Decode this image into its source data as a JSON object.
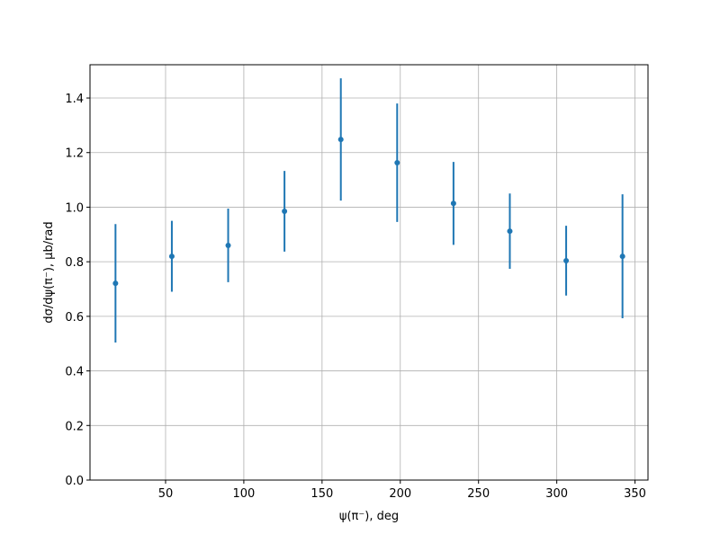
{
  "chart_data": {
    "type": "errorbar",
    "x_label": "ψ(π⁻), deg",
    "y_label": "dσ/dψ(π⁻), μb/rad",
    "x": [
      18,
      54,
      90,
      126,
      162,
      198,
      234,
      270,
      306,
      342
    ],
    "values": [
      0.721,
      0.82,
      0.86,
      0.985,
      1.248,
      1.163,
      1.014,
      0.912,
      0.804,
      0.82
    ],
    "errors": [
      0.217,
      0.13,
      0.135,
      0.148,
      0.224,
      0.217,
      0.152,
      0.138,
      0.128,
      0.227
    ],
    "color": "#1f77b4",
    "xlim": [
      1.7,
      358.3
    ],
    "ylim": [
      0,
      1.522
    ],
    "xticks": [
      50,
      100,
      150,
      200,
      250,
      300,
      350
    ],
    "yticks": [
      {
        "value": 0,
        "label": "0.0"
      },
      {
        "value": 0.2,
        "label": "0.2"
      },
      {
        "value": 0.4,
        "label": "0.4"
      },
      {
        "value": 0.6,
        "label": "0.6"
      },
      {
        "value": 0.8,
        "label": "0.8"
      },
      {
        "value": 1.0,
        "label": "1.0"
      },
      {
        "value": 1.2,
        "label": "1.2"
      },
      {
        "value": 1.4,
        "label": "1.4"
      }
    ],
    "grid": true
  }
}
